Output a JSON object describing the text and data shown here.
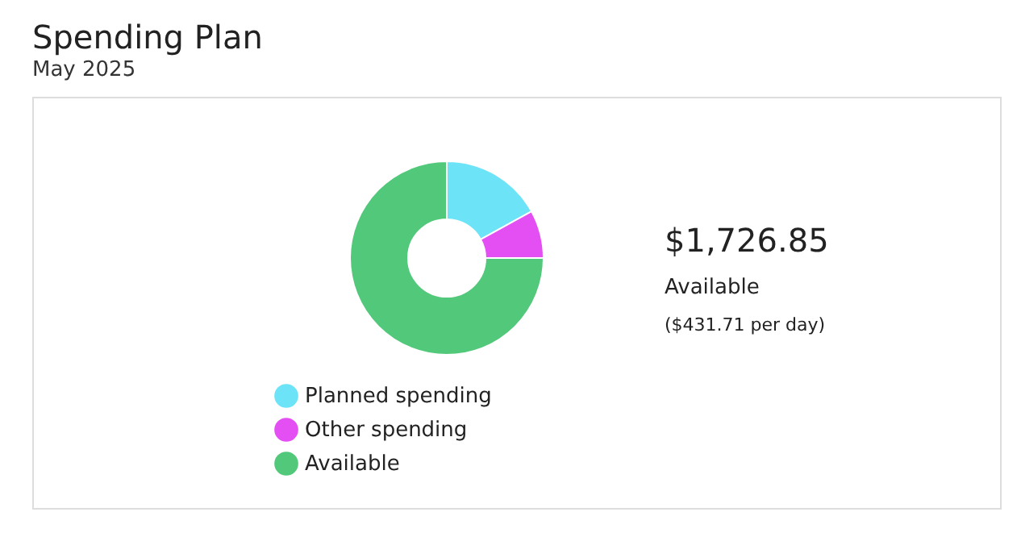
{
  "chart_data": {
    "type": "donut",
    "title": "Spending Plan",
    "subtitle": "May 2025",
    "categories": [
      "Planned spending",
      "Other spending",
      "Available"
    ],
    "values": [
      17,
      8,
      75
    ],
    "colors": [
      "#6de3f7",
      "#e34ff2",
      "#52c87a"
    ],
    "legend": "bottom",
    "annotations": [
      "$1,726.85",
      "Available",
      "($431.71 per day)"
    ]
  }
}
